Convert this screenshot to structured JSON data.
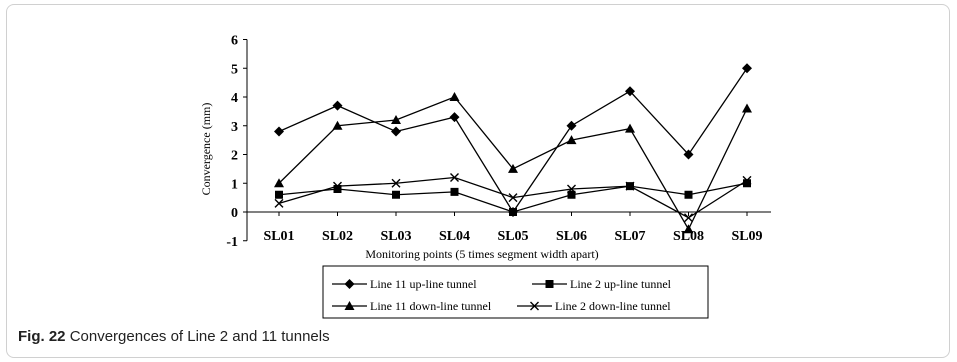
{
  "figure": {
    "label": "Fig. 22",
    "caption": "Convergences of Line 2 and 11 tunnels"
  },
  "chart_data": {
    "type": "line",
    "xlabel": "Monitoring points (5 times segment width apart)",
    "ylabel": "Convergence (mm)",
    "categories": [
      "SL01",
      "SL02",
      "SL03",
      "SL04",
      "SL05",
      "SL06",
      "SL07",
      "SL08",
      "SL09"
    ],
    "ylim": [
      -1,
      6
    ],
    "yticks": [
      -1,
      0,
      1,
      2,
      3,
      4,
      5,
      6
    ],
    "grid": false,
    "legend_position": "bottom",
    "series": [
      {
        "name": "Line 11 up-line tunnel",
        "marker": "diamond",
        "values": [
          2.8,
          3.7,
          2.8,
          3.3,
          0.0,
          3.0,
          4.2,
          2.0,
          5.0
        ]
      },
      {
        "name": "Line 2 up-line tunnel",
        "marker": "square",
        "values": [
          0.6,
          0.8,
          0.6,
          0.7,
          0.0,
          0.6,
          0.9,
          0.6,
          1.0
        ]
      },
      {
        "name": "Line 11 down-line tunnel",
        "marker": "triangle",
        "values": [
          1.0,
          3.0,
          3.2,
          4.0,
          1.5,
          2.5,
          2.9,
          -0.6,
          3.6
        ]
      },
      {
        "name": "Line 2 down-line tunnel",
        "marker": "x",
        "values": [
          0.3,
          0.9,
          1.0,
          1.2,
          0.5,
          0.8,
          0.9,
          -0.2,
          1.1
        ]
      }
    ]
  }
}
